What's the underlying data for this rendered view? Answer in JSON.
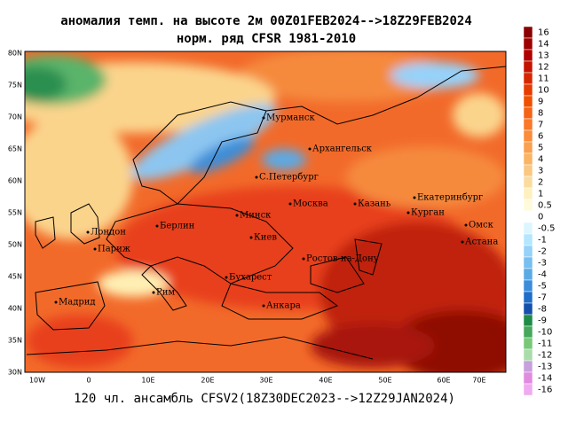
{
  "title": {
    "line1": "аномалия темп. на высоте 2м 00Z01FEB2024-->18Z29FEB2024",
    "line2": "норм. ряд CFSR 1981-2010"
  },
  "caption": "120 чл. ансамбль CFSV2(18Z30DEC2023-->12Z29JAN2024)",
  "map": {
    "lon_labels": [
      "10W",
      "0",
      "10E",
      "20E",
      "30E",
      "40E",
      "50E",
      "60E",
      "70E"
    ],
    "lat_labels": [
      "80N",
      "75N",
      "70N",
      "65N",
      "60N",
      "55N",
      "50N",
      "45N",
      "40N",
      "35N",
      "30N"
    ],
    "cities": [
      "Мурманск",
      "Архангельск",
      "С.Петербург",
      "Москва",
      "Казань",
      "Екатеринбург",
      "Курган",
      "Омск",
      "Астана",
      "Минск",
      "Берлин",
      "Киев",
      "Лондон",
      "Париж",
      "Ростов-на-Дону",
      "Бухарест",
      "Рим",
      "Мадрид",
      "Анкара"
    ]
  },
  "colorbar": {
    "labels": [
      16,
      14,
      13,
      12,
      11,
      10,
      9,
      8,
      7,
      6,
      5,
      4,
      3,
      2,
      1,
      0.5,
      0,
      -0.5,
      -1,
      -2,
      -3,
      -4,
      -5,
      -7,
      -8,
      -9,
      -10,
      -11,
      -12,
      -13,
      -14,
      -16
    ]
  }
}
